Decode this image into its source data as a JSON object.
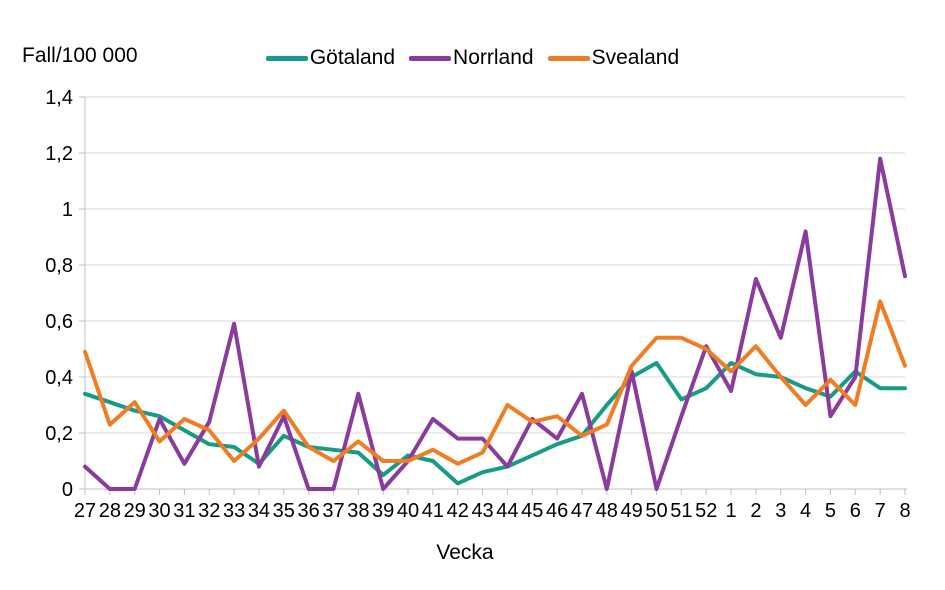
{
  "title": {
    "y_axis_unit": "Fall/100 000"
  },
  "legend": {
    "items": [
      {
        "label": "Götaland",
        "color": "#169B85"
      },
      {
        "label": "Norrland",
        "color": "#8A3C9E"
      },
      {
        "label": "Svealand",
        "color": "#F07D23"
      }
    ]
  },
  "axes": {
    "x_title": "Vecka"
  },
  "colors": {
    "gridline": "#D9D9D9",
    "axis": "#BFBFBF",
    "text": "#000000"
  },
  "chart_data": {
    "type": "line",
    "title": "Fall/100 000",
    "xlabel": "Vecka",
    "ylabel": "Fall/100 000",
    "grid": true,
    "legend_position": "top",
    "ylim": [
      0,
      1.4
    ],
    "y_ticks": {
      "values": [
        0,
        0.2,
        0.4,
        0.6,
        0.8,
        1.0,
        1.2,
        1.4
      ],
      "labels": [
        "0",
        "0,2",
        "0,4",
        "0,6",
        "0,8",
        "1",
        "1,2",
        "1,4"
      ]
    },
    "categories": [
      "27",
      "28",
      "29",
      "30",
      "31",
      "32",
      "33",
      "34",
      "35",
      "36",
      "37",
      "38",
      "39",
      "40",
      "41",
      "42",
      "43",
      "44",
      "45",
      "46",
      "47",
      "48",
      "49",
      "50",
      "51",
      "52",
      "1",
      "2",
      "3",
      "4",
      "5",
      "6",
      "7",
      "8"
    ],
    "series": [
      {
        "name": "Götaland",
        "color": "#169B85",
        "values": [
          0.34,
          0.31,
          0.28,
          0.26,
          0.21,
          0.16,
          0.15,
          0.09,
          0.19,
          0.15,
          0.14,
          0.13,
          0.05,
          0.12,
          0.1,
          0.02,
          0.06,
          0.08,
          0.12,
          0.16,
          0.19,
          0.3,
          0.4,
          0.45,
          0.32,
          0.36,
          0.45,
          0.41,
          0.4,
          0.36,
          0.33,
          0.42,
          0.36,
          0.36
        ]
      },
      {
        "name": "Norrland",
        "color": "#8A3C9E",
        "values": [
          0.08,
          0.0,
          0.0,
          0.25,
          0.09,
          0.24,
          0.59,
          0.08,
          0.26,
          0.0,
          0.0,
          0.34,
          0.0,
          0.1,
          0.25,
          0.18,
          0.18,
          0.08,
          0.25,
          0.18,
          0.34,
          0.0,
          0.42,
          0.0,
          0.26,
          0.51,
          0.35,
          0.75,
          0.54,
          0.92,
          0.26,
          0.4,
          1.18,
          0.76
        ]
      },
      {
        "name": "Svealand",
        "color": "#F07D23",
        "values": [
          0.49,
          0.23,
          0.31,
          0.17,
          0.25,
          0.21,
          0.1,
          0.18,
          0.28,
          0.15,
          0.1,
          0.17,
          0.1,
          0.1,
          0.14,
          0.09,
          0.13,
          0.3,
          0.24,
          0.26,
          0.19,
          0.23,
          0.44,
          0.54,
          0.54,
          0.5,
          0.42,
          0.51,
          0.4,
          0.3,
          0.39,
          0.3,
          0.67,
          0.44
        ]
      }
    ]
  }
}
